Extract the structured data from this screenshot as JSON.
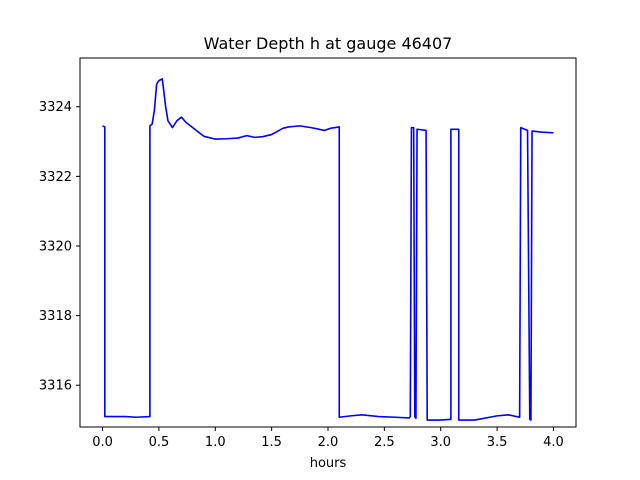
{
  "chart_data": {
    "type": "line",
    "title": "Water Depth h at gauge 46407",
    "xlabel": "hours",
    "ylabel": "",
    "xlim": [
      -0.2,
      4.2
    ],
    "ylim": [
      3314.8,
      3325.4
    ],
    "xticks": [
      0.0,
      0.5,
      1.0,
      1.5,
      2.0,
      2.5,
      3.0,
      3.5,
      4.0
    ],
    "xtick_labels": [
      "0.0",
      "0.5",
      "1.0",
      "1.5",
      "2.0",
      "2.5",
      "3.0",
      "3.5",
      "4.0"
    ],
    "yticks": [
      3316,
      3318,
      3320,
      3322,
      3324
    ],
    "ytick_labels": [
      "3316",
      "3318",
      "3320",
      "3322",
      "3324"
    ],
    "grid": false,
    "series": [
      {
        "color": "#0000ff",
        "x": [
          0.0,
          0.02,
          0.02,
          0.1,
          0.2,
          0.3,
          0.42,
          0.42,
          0.44,
          0.46,
          0.48,
          0.5,
          0.53,
          0.56,
          0.58,
          0.62,
          0.66,
          0.7,
          0.74,
          0.8,
          0.9,
          1.0,
          1.1,
          1.2,
          1.28,
          1.35,
          1.42,
          1.5,
          1.6,
          1.65,
          1.75,
          1.85,
          1.97,
          2.02,
          2.1,
          2.1,
          2.2,
          2.3,
          2.45,
          2.6,
          2.72,
          2.73,
          2.74,
          2.76,
          2.77,
          2.78,
          2.79,
          2.8,
          2.87,
          2.88,
          3.0,
          3.09,
          3.09,
          3.16,
          3.16,
          3.3,
          3.5,
          3.6,
          3.7,
          3.71,
          3.77,
          3.79,
          3.8,
          3.81,
          3.9,
          4.0
        ],
        "y": [
          3323.45,
          3323.42,
          3315.1,
          3315.1,
          3315.1,
          3315.08,
          3315.1,
          3323.45,
          3323.5,
          3323.9,
          3324.65,
          3324.75,
          3324.8,
          3324.0,
          3323.6,
          3323.4,
          3323.6,
          3323.7,
          3323.55,
          3323.4,
          3323.15,
          3323.07,
          3323.08,
          3323.1,
          3323.17,
          3323.12,
          3323.14,
          3323.2,
          3323.38,
          3323.42,
          3323.45,
          3323.4,
          3323.32,
          3323.38,
          3323.42,
          3315.08,
          3315.12,
          3315.15,
          3315.1,
          3315.08,
          3315.06,
          3315.1,
          3323.4,
          3323.4,
          3315.1,
          3315.05,
          3323.35,
          3323.35,
          3323.32,
          3315.0,
          3315.0,
          3315.02,
          3323.35,
          3323.35,
          3315.0,
          3315.0,
          3315.12,
          3315.15,
          3315.08,
          3323.4,
          3323.32,
          3315.02,
          3315.0,
          3323.3,
          3323.27,
          3323.25
        ]
      }
    ]
  }
}
